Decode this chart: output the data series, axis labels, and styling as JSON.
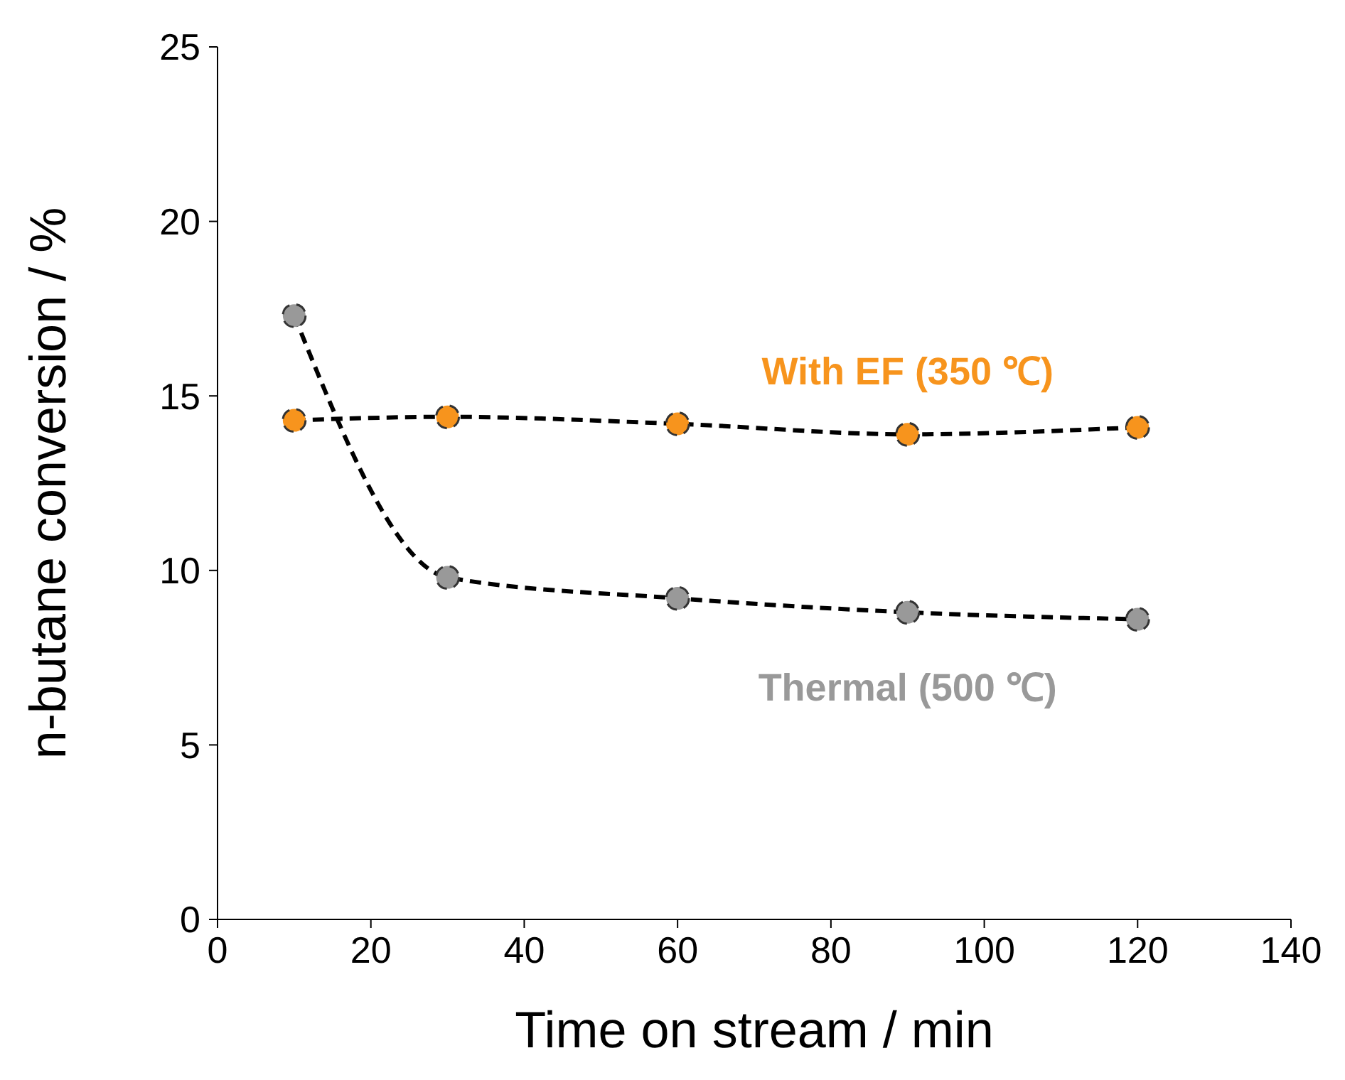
{
  "chart_data": {
    "type": "line",
    "xlabel": "Time on stream / min",
    "ylabel": "n-butane conversion  / %",
    "xlim": [
      0,
      140
    ],
    "xticks": [
      0,
      20,
      40,
      60,
      80,
      100,
      120,
      140
    ],
    "ylim": [
      0,
      25
    ],
    "yticks": [
      0,
      5,
      10,
      15,
      20,
      25
    ],
    "x": [
      10,
      30,
      60,
      90,
      120
    ],
    "grid": false,
    "legend": false,
    "marker": "circle",
    "line_style": "dashed",
    "series": [
      {
        "name": "With EF (350 ℃)",
        "color": "#f7941d",
        "values": [
          14.3,
          14.4,
          14.2,
          13.9,
          14.1
        ]
      },
      {
        "name": "Thermal (500 ℃)",
        "color": "#999999",
        "values": [
          17.3,
          9.8,
          9.2,
          8.8,
          8.6
        ]
      }
    ]
  }
}
